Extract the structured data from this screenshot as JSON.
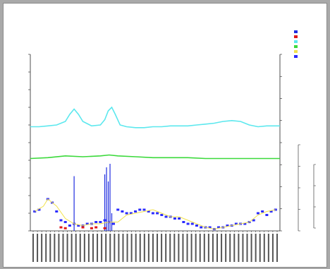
{
  "colors": {
    "series1": "#1f2de0",
    "series2": "#e01818",
    "series3": "#5ce8ee",
    "series4": "#3bd93b",
    "series5": "#f2e14a",
    "series6": "#2b2bff",
    "axis": "#222222"
  },
  "chart_data": {
    "type": "line",
    "xlim": [
      0,
      57
    ],
    "ylim": [
      0,
      100
    ],
    "grid": false,
    "legend_position": "top-right",
    "x_tick_count": 58,
    "series": [
      {
        "name": "",
        "kind": "line",
        "color_key": "series3",
        "x": [
          0,
          2,
          4,
          6,
          8,
          9,
          10,
          11,
          12,
          14,
          16,
          17,
          17.8,
          18.6,
          19.4,
          20.5,
          22,
          24,
          26,
          28,
          30,
          32,
          34,
          36,
          38,
          40,
          42,
          44,
          46,
          48,
          50,
          52,
          54,
          56,
          57
        ],
        "y": [
          59,
          59,
          59.5,
          60,
          62,
          66,
          69,
          66,
          62,
          59.5,
          60,
          63,
          68,
          70,
          66,
          60,
          59,
          58.5,
          58.5,
          59,
          59,
          59.5,
          59.5,
          59.5,
          60,
          60.5,
          61,
          62,
          62.5,
          62,
          60,
          59,
          59.5,
          59.5,
          59.5
        ]
      },
      {
        "name": "",
        "kind": "line",
        "color_key": "series4",
        "x": [
          0,
          4,
          8,
          12,
          16,
          18,
          20,
          24,
          28,
          32,
          36,
          40,
          44,
          48,
          52,
          57
        ],
        "y": [
          41,
          41.5,
          42.5,
          42,
          42.5,
          43,
          42.5,
          42,
          41.5,
          41.5,
          41.5,
          41,
          41,
          41,
          41,
          41
        ]
      },
      {
        "name": "",
        "kind": "bar",
        "color_key": "series1",
        "x": [
          10,
          17,
          17.4,
          17.8,
          18.2,
          18.6
        ],
        "y": [
          31,
          32,
          36,
          28,
          38,
          10
        ]
      },
      {
        "name": "",
        "kind": "points",
        "color_key": "series6",
        "x": [
          1,
          2,
          4,
          5,
          6,
          7,
          8,
          9,
          10,
          11,
          12,
          13,
          14,
          15,
          16,
          17,
          18,
          19,
          20,
          21,
          22,
          23,
          24,
          25,
          26,
          27,
          28,
          29,
          30,
          31,
          32,
          33,
          34,
          35,
          36,
          37,
          38,
          39,
          40,
          41,
          42,
          43,
          44,
          45,
          46,
          47,
          48,
          49,
          50,
          51,
          52,
          53,
          54,
          55,
          56
        ],
        "y": [
          11,
          12,
          18,
          16,
          11,
          6,
          5,
          3,
          4,
          3,
          3,
          4,
          4,
          5,
          5,
          6,
          5,
          4,
          12,
          11,
          10,
          10,
          11,
          12,
          12,
          11,
          10,
          10,
          9,
          8,
          8,
          7,
          7,
          5,
          4,
          4,
          3,
          2,
          2,
          2,
          1,
          2,
          2,
          3,
          3,
          4,
          4,
          4,
          5,
          6,
          10,
          11,
          9,
          11,
          12
        ]
      },
      {
        "name": "",
        "kind": "line",
        "color_key": "series5",
        "x": [
          1,
          3,
          4,
          6,
          8,
          10,
          12,
          14,
          16,
          18,
          20,
          22,
          24,
          26,
          28,
          30,
          32,
          34,
          36,
          38,
          40,
          42,
          44,
          46,
          48,
          50,
          52,
          54,
          56
        ],
        "y": [
          11,
          14,
          18,
          14,
          7,
          4,
          3,
          4,
          4,
          5,
          5,
          9,
          10,
          11,
          12,
          10,
          8,
          8,
          6,
          4,
          2,
          1,
          2,
          3,
          4,
          5,
          9,
          11,
          12
        ]
      },
      {
        "name": "",
        "kind": "points",
        "color_key": "series2",
        "x": [
          7,
          8,
          12,
          14,
          15,
          17
        ],
        "y": [
          2,
          1.5,
          2,
          1.5,
          2,
          1.5
        ]
      }
    ]
  },
  "header": {
    "title": "",
    "subtitle": "",
    "field1": "",
    "field2": "",
    "field3": "",
    "field4": "",
    "field5": "",
    "field6": ""
  },
  "legend": [
    {
      "label": "",
      "color_key": "series1"
    },
    {
      "label": "",
      "color_key": "series2"
    },
    {
      "label": "",
      "color_key": "series3"
    },
    {
      "label": "",
      "color_key": "series4"
    },
    {
      "label": "",
      "color_key": "series5"
    },
    {
      "label": "",
      "color_key": "series6"
    }
  ]
}
